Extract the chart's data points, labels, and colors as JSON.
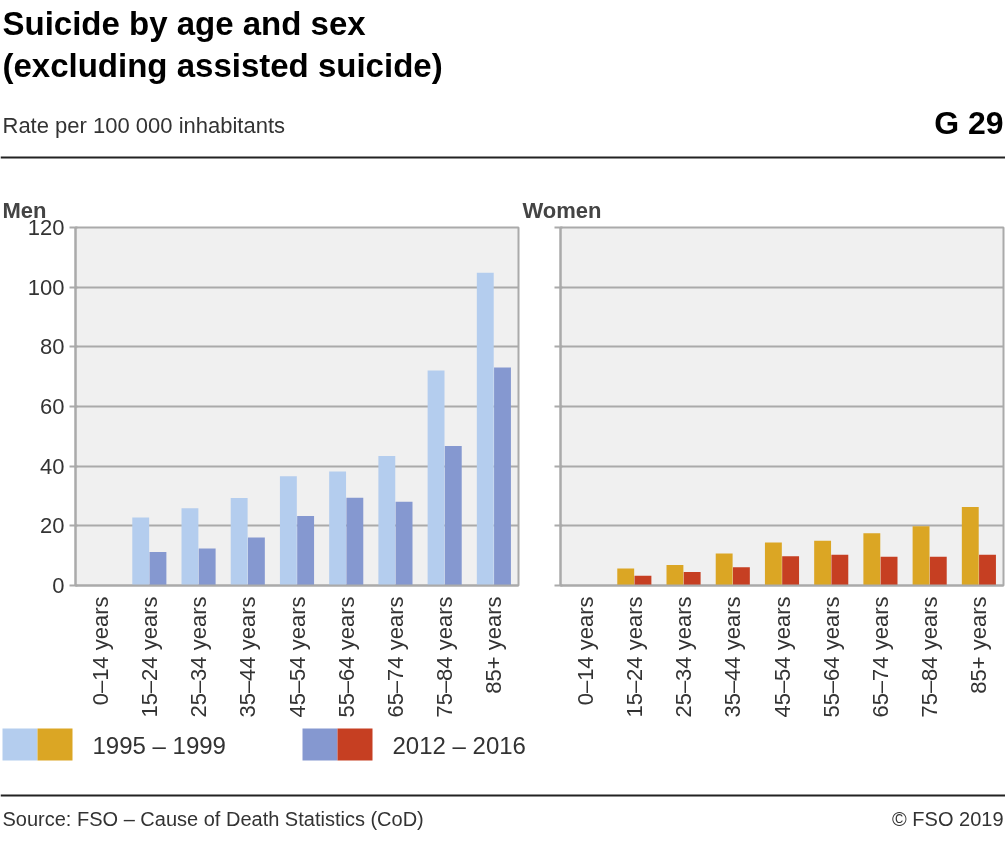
{
  "chart_data": [
    {
      "type": "other",
      "title": "Suicide by age and sex (excluding assisted suicide)",
      "subtitle": "Rate per 100 000 inhabitants",
      "annotations": [
        "G 29"
      ]
    },
    {
      "type": "bar",
      "title": "Men",
      "categories": [
        "0–14 years",
        "15–24 years",
        "25–34 years",
        "35–44 years",
        "45–54 years",
        "55–64 years",
        "65–74 years",
        "75–84 years",
        "85+ years"
      ],
      "ylim": [
        0,
        120
      ],
      "yticks": [
        0,
        20,
        40,
        60,
        80,
        100,
        120
      ],
      "grid": "y",
      "legend": "bottom",
      "series": [
        {
          "name": "1995 – 1999",
          "color": "#b4cdee",
          "values": [
            null,
            22.8,
            25.9,
            29.3,
            36.6,
            38.2,
            43.4,
            72.1,
            104.8
          ]
        },
        {
          "name": "2012 – 2016",
          "color": "#8598d0",
          "values": [
            null,
            11.2,
            12.4,
            16.1,
            23.3,
            29.4,
            28.1,
            46.8,
            73.1
          ]
        }
      ]
    },
    {
      "type": "bar",
      "title": "Women",
      "categories": [
        "0–14 years",
        "15–24 years",
        "25–34 years",
        "35–44 years",
        "45–54 years",
        "55–64 years",
        "65–74 years",
        "75–84 years",
        "85+ years"
      ],
      "ylim": [
        0,
        120
      ],
      "yticks": [
        0,
        20,
        40,
        60,
        80,
        100,
        120
      ],
      "grid": "y",
      "tick_labels": "x",
      "series": [
        {
          "color": "#dba624",
          "values": [
            null,
            5.7,
            6.9,
            10.7,
            14.4,
            15.0,
            17.5,
            19.9,
            26.3
          ]
        },
        {
          "color": "#c63f22",
          "values": [
            null,
            3.3,
            4.5,
            6.1,
            9.8,
            10.3,
            9.6,
            9.6,
            10.3
          ]
        }
      ]
    },
    {
      "type": "other",
      "annotations": [
        "Source: FSO – Cause of Death Statistics (CoD)",
        "© FSO 2019"
      ]
    }
  ]
}
